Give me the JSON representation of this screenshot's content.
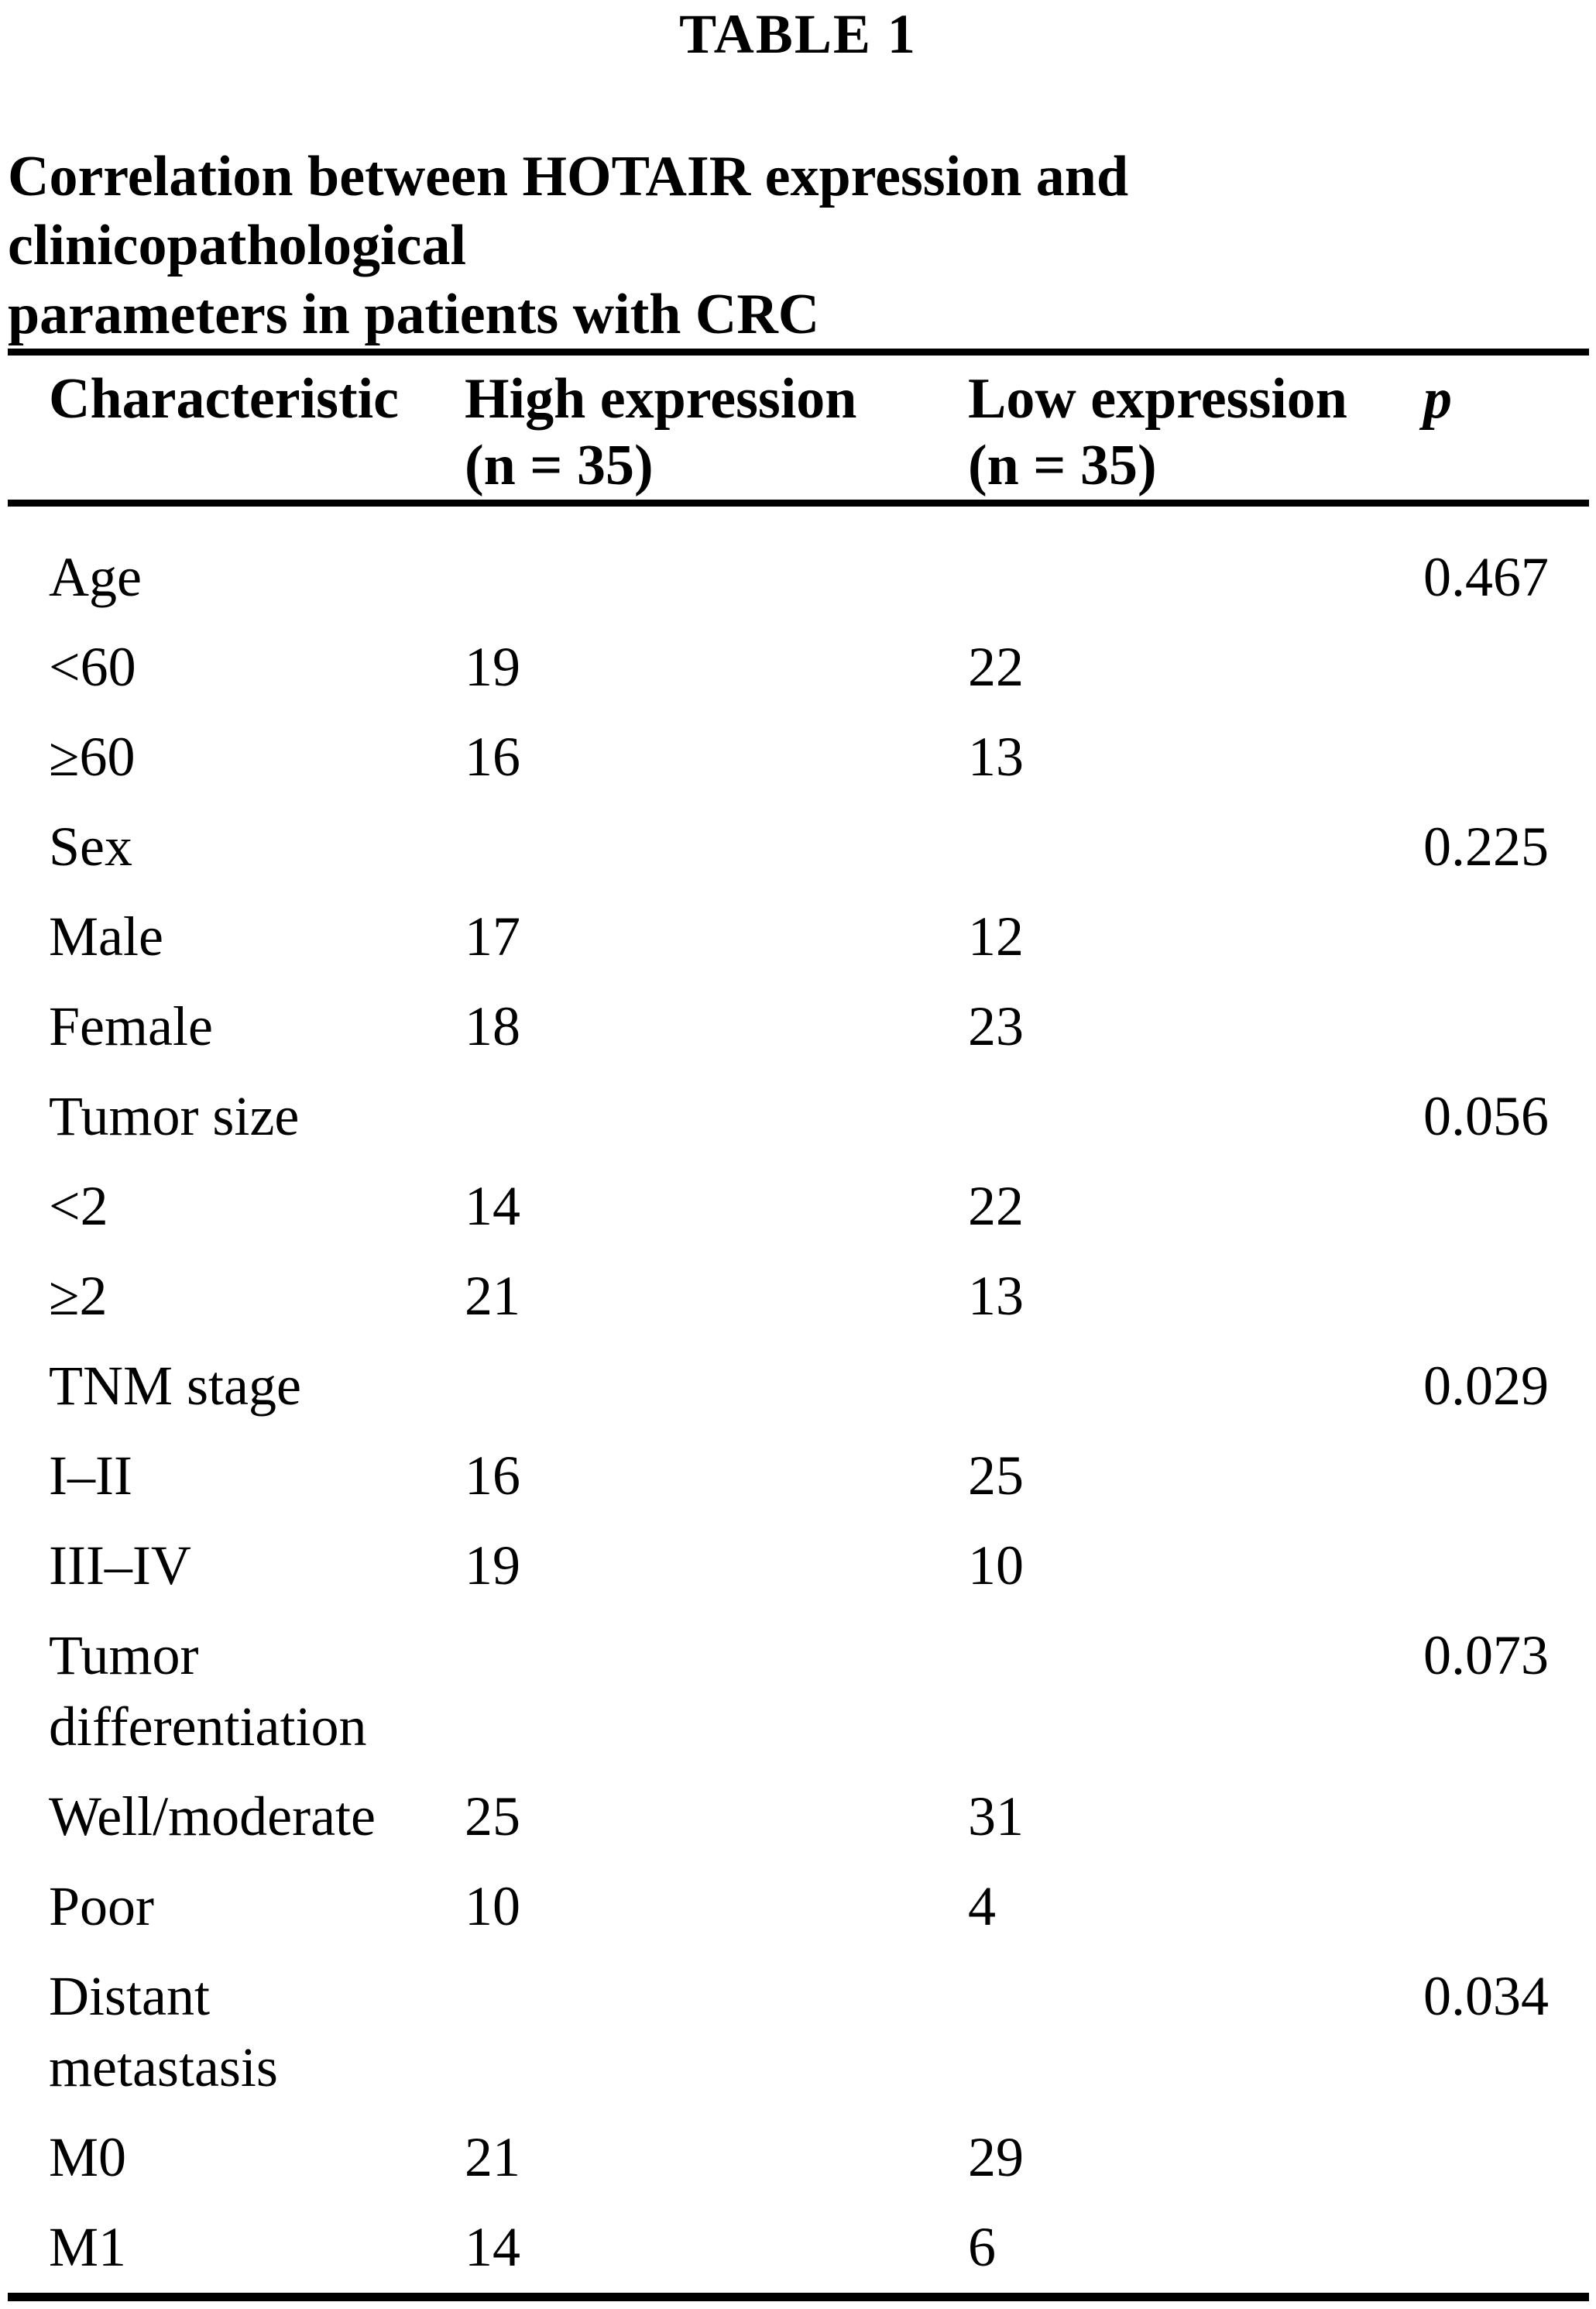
{
  "table_label": "TABLE 1",
  "caption": "Correlation between HOTAIR expression and clinicopathological\nparameters in patients with CRC",
  "table": {
    "columns": [
      "Characteristic",
      "High expression\n(n = 35)",
      "Low expression\n(n = 35)",
      "p"
    ],
    "rows": [
      {
        "label": "Age",
        "high": "",
        "low": "",
        "p": "0.467"
      },
      {
        "label": "<60",
        "high": "19",
        "low": "22",
        "p": ""
      },
      {
        "label": "≥60",
        "high": "16",
        "low": "13",
        "p": ""
      },
      {
        "label": "Sex",
        "high": "",
        "low": "",
        "p": "0.225"
      },
      {
        "label": "Male",
        "high": "17",
        "low": "12",
        "p": ""
      },
      {
        "label": "Female",
        "high": "18",
        "low": "23",
        "p": ""
      },
      {
        "label": "Tumor size",
        "high": "",
        "low": "",
        "p": "0.056"
      },
      {
        "label": "<2",
        "high": "14",
        "low": "22",
        "p": ""
      },
      {
        "label": "≥2",
        "high": "21",
        "low": "13",
        "p": ""
      },
      {
        "label": "TNM stage",
        "high": "",
        "low": "",
        "p": "0.029"
      },
      {
        "label": "I–II",
        "high": "16",
        "low": "25",
        "p": ""
      },
      {
        "label": "III–IV",
        "high": "19",
        "low": "10",
        "p": ""
      },
      {
        "label": "Tumor\ndifferentiation",
        "high": "",
        "low": "",
        "p": "0.073"
      },
      {
        "label": "Well/moderate",
        "high": "25",
        "low": "31",
        "p": ""
      },
      {
        "label": "Poor",
        "high": "10",
        "low": "4",
        "p": ""
      },
      {
        "label": "Distant\nmetastasis",
        "high": "",
        "low": "",
        "p": "0.034"
      },
      {
        "label": "M0",
        "high": "21",
        "low": "29",
        "p": ""
      },
      {
        "label": "M1",
        "high": "14",
        "low": "6",
        "p": ""
      }
    ]
  }
}
